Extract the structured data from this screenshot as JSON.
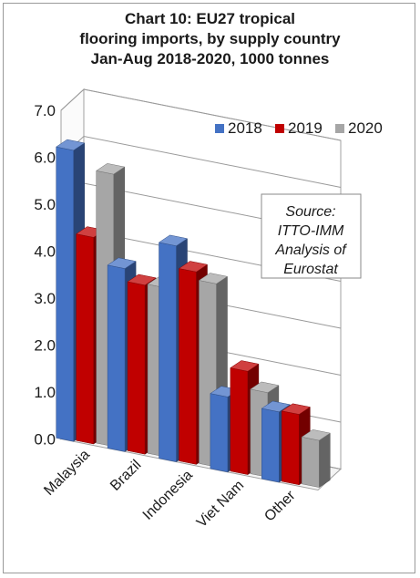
{
  "chart_data": {
    "type": "bar",
    "title_lines": [
      "Chart 10: EU27 tropical",
      "flooring imports, by supply country",
      "Jan-Aug 2018-2020, 1000 tonnes"
    ],
    "categories": [
      "Malaysia",
      "Brazil",
      "Indonesia",
      "Viet Nam",
      "Other"
    ],
    "series": [
      {
        "name": "2018",
        "color": "#4472c4",
        "values": [
          6.2,
          3.9,
          4.6,
          1.6,
          1.5
        ]
      },
      {
        "name": "2019",
        "color": "#c00000",
        "values": [
          4.4,
          3.6,
          4.1,
          2.2,
          1.5
        ]
      },
      {
        "name": "2020",
        "color": "#a6a6a6",
        "values": [
          5.8,
          3.6,
          3.9,
          1.8,
          1.0
        ]
      }
    ],
    "ylim": [
      0,
      7
    ],
    "yticks": [
      "0.0",
      "1.0",
      "2.0",
      "3.0",
      "4.0",
      "5.0",
      "6.0",
      "7.0"
    ],
    "grid": true,
    "legend_position": "top-right",
    "annotation": [
      "Source:",
      "ITTO-IMM",
      "Analysis of",
      "Eurostat"
    ]
  }
}
